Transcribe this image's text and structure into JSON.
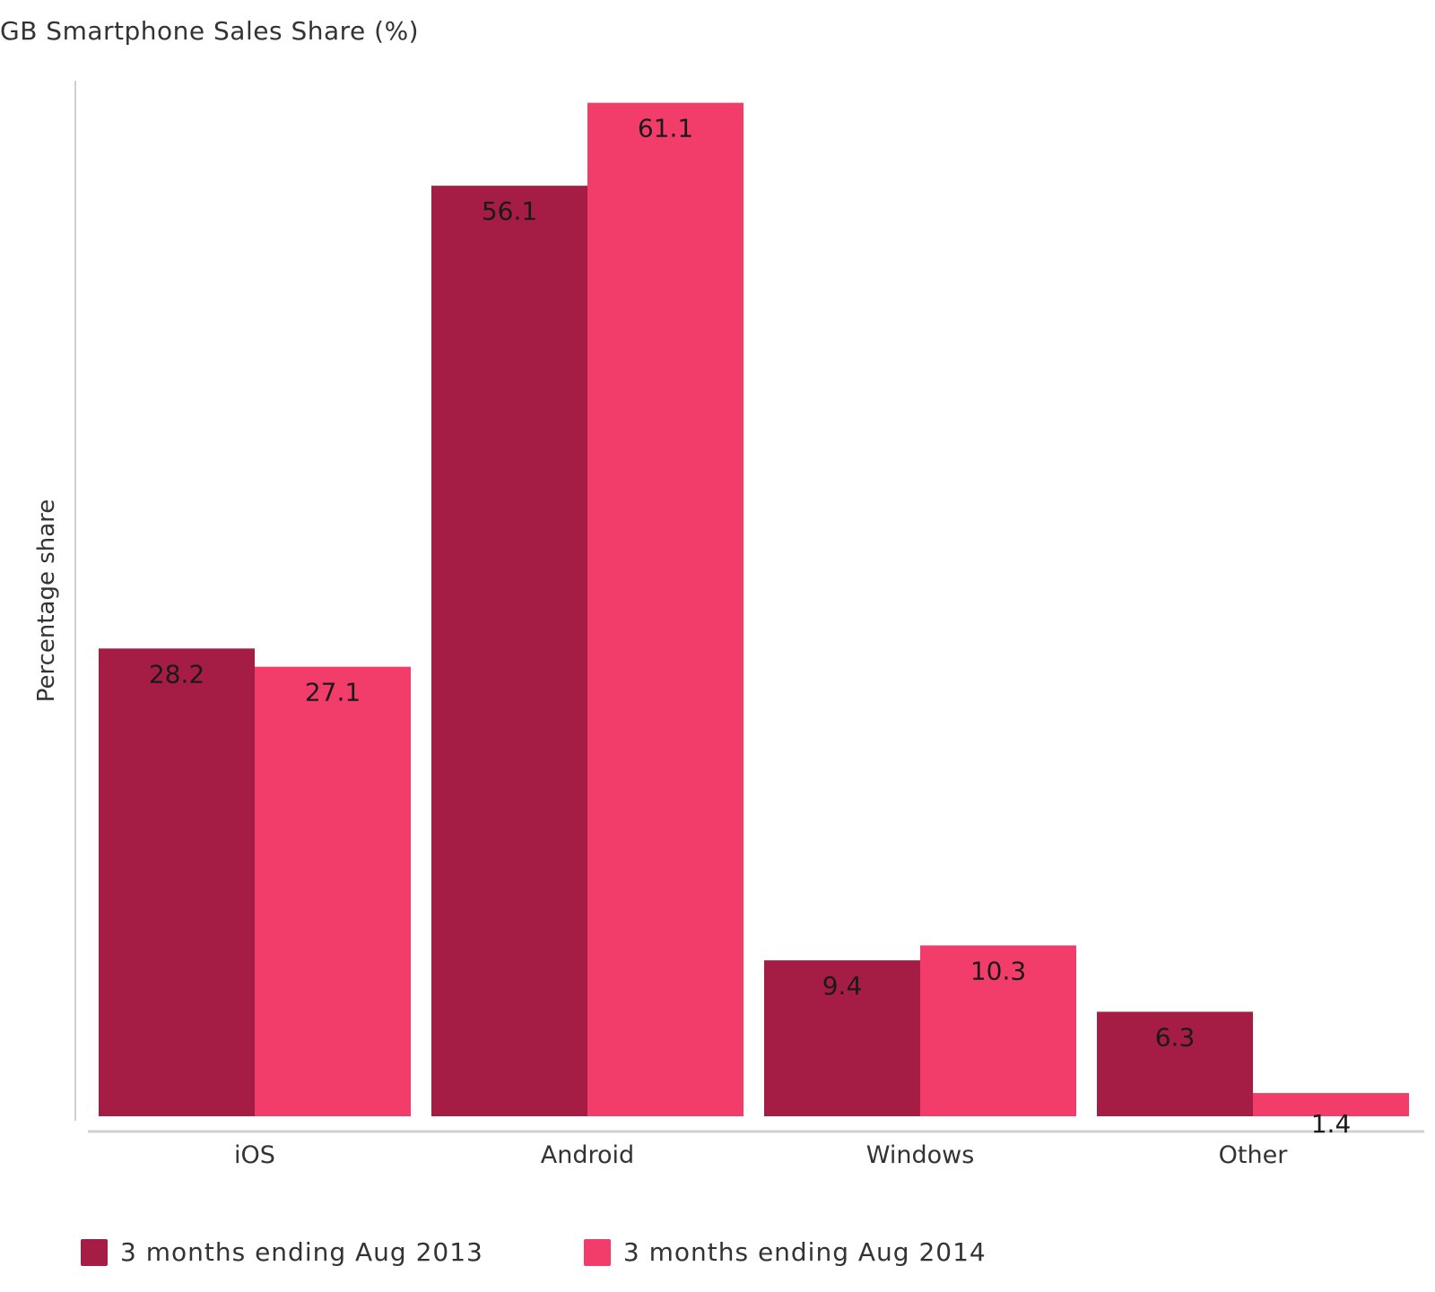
{
  "chart_data": {
    "type": "bar",
    "title": "GB Smartphone Sales Share (%)",
    "xlabel": "",
    "ylabel": "Percentage share",
    "categories": [
      "iOS",
      "Android",
      "Windows",
      "Other"
    ],
    "series": [
      {
        "name": "3 months ending Aug 2013",
        "color": "#a51d45",
        "values": [
          28.2,
          56.1,
          9.4,
          6.3
        ]
      },
      {
        "name": "3 months ending Aug 2014",
        "color": "#f23d6b",
        "values": [
          27.1,
          61.1,
          10.3,
          1.4
        ]
      }
    ],
    "ylim": [
      0,
      64
    ],
    "grid": false,
    "legend_position": "bottom-left"
  }
}
